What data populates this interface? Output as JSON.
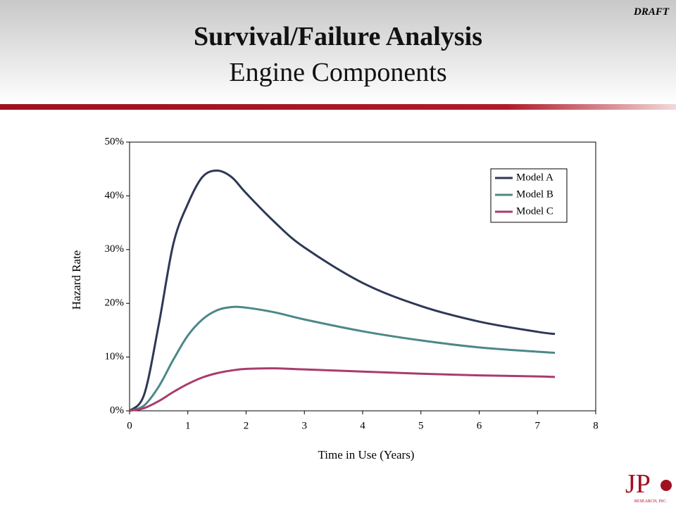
{
  "header": {
    "title": "Survival/Failure Analysis",
    "subtitle": "Engine Components",
    "draft": "DRAFT"
  },
  "logo": {
    "text": "JP",
    "subtext": "RESEARCH, INC."
  },
  "chart_data": {
    "type": "line",
    "x_label": "Time in Use (Years)",
    "y_label": "Hazard Rate",
    "x": [
      0,
      0.25,
      0.5,
      0.75,
      1,
      1.25,
      1.5,
      1.75,
      2,
      2.5,
      3,
      4,
      5,
      6,
      7,
      7.3
    ],
    "series": [
      {
        "name": "Model A",
        "color": "#2e3856",
        "values": [
          0,
          3,
          16,
          31,
          38.5,
          43.5,
          44.7,
          43.5,
          40.5,
          35,
          30.4,
          23.8,
          19.5,
          16.6,
          14.7,
          14.3
        ]
      },
      {
        "name": "Model B",
        "color": "#4d8787",
        "values": [
          0,
          1,
          4.5,
          9.5,
          14,
          17,
          18.7,
          19.3,
          19.2,
          18.3,
          17,
          14.8,
          13.1,
          11.8,
          11,
          10.8
        ]
      },
      {
        "name": "Model C",
        "color": "#a83c6c",
        "values": [
          0,
          0.5,
          1.8,
          3.5,
          5,
          6.2,
          7,
          7.5,
          7.8,
          7.9,
          7.7,
          7.3,
          6.9,
          6.6,
          6.4,
          6.3
        ]
      }
    ],
    "xlim": [
      0,
      8
    ],
    "xticks": [
      0,
      1,
      2,
      3,
      4,
      5,
      6,
      7,
      8
    ],
    "ylim": [
      0,
      50
    ],
    "yticks": [
      {
        "value": 0,
        "label": "0%"
      },
      {
        "value": 10,
        "label": "10%"
      },
      {
        "value": 20,
        "label": "20%"
      },
      {
        "value": 30,
        "label": "30%"
      },
      {
        "value": 40,
        "label": "40%"
      },
      {
        "value": 50,
        "label": "50%"
      }
    ],
    "grid": false,
    "legend": "upper right"
  }
}
